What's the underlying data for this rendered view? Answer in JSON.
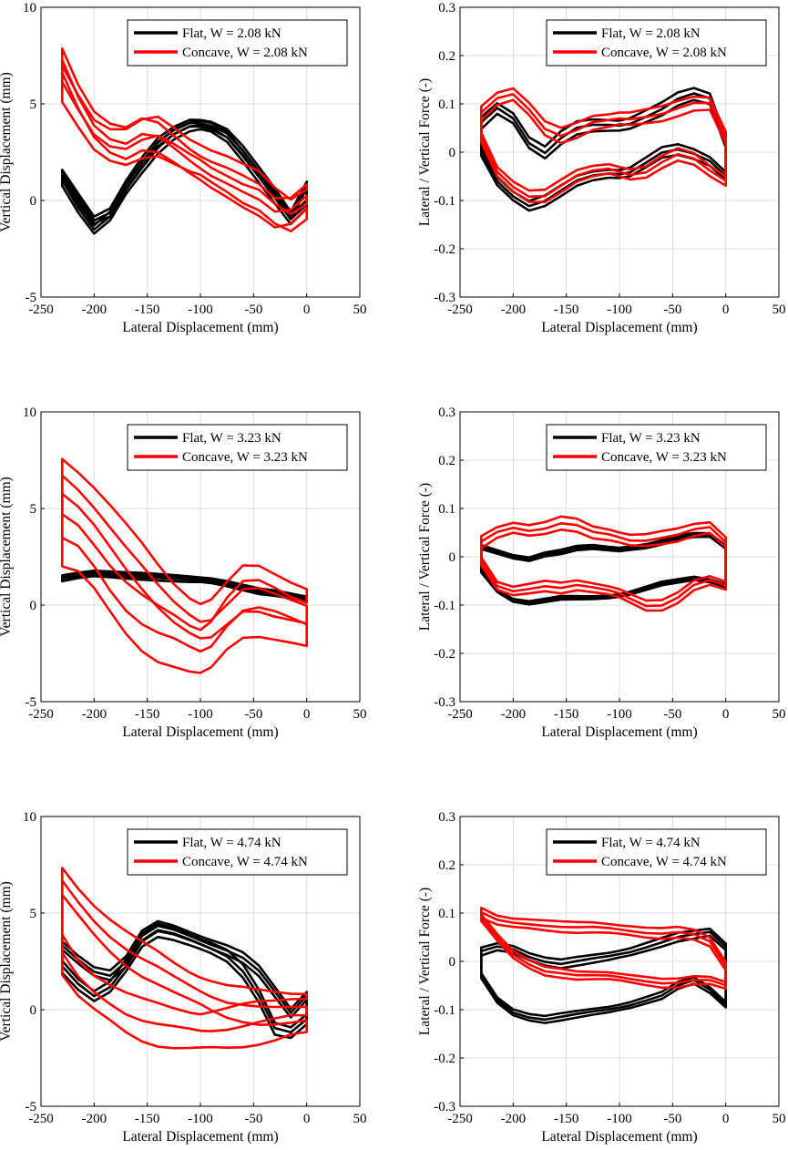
{
  "colors": {
    "flat": "#000000",
    "concave": "#ff0000",
    "grid": "#dcdcdc",
    "axis": "#000000"
  },
  "chart_data": [
    {
      "type": "line",
      "panel": "row1-left",
      "xlabel": "Lateral Displacement (mm)",
      "ylabel": "Vertical Displacement (mm)",
      "xlim": [
        -250,
        50
      ],
      "ylim": [
        -5,
        10
      ],
      "xticks": [
        -250,
        -200,
        -150,
        -100,
        -50,
        0,
        50
      ],
      "yticks": [
        -5,
        0,
        5,
        10
      ],
      "xtick_labels": [
        "-250",
        "-200",
        "-150",
        "-100",
        "-50",
        "0",
        "50"
      ],
      "ytick_labels": [
        "-5",
        "0",
        "5",
        "10"
      ],
      "grid": true,
      "legend_position": "top-right",
      "series": [
        {
          "name": "Flat, W = 2.08 kN",
          "color": "#000000",
          "loops": 3,
          "spread": 0.25,
          "x": [
            -230,
            -215,
            -200,
            -185,
            -170,
            -155,
            -140,
            -125,
            -110,
            -100,
            -90,
            -75,
            -60,
            -45,
            -30,
            -15,
            0
          ],
          "y_fwd": [
            1.0,
            -0.4,
            -1.5,
            -0.8,
            0.6,
            1.7,
            2.7,
            3.4,
            3.8,
            3.9,
            3.8,
            3.3,
            2.3,
            1.2,
            0.1,
            -1.0,
            -0.2
          ],
          "y_ret": [
            1.4,
            0.2,
            -1.0,
            -0.6,
            0.8,
            2.0,
            3.0,
            3.6,
            4.0,
            4.0,
            3.9,
            3.5,
            2.6,
            1.5,
            0.4,
            -0.8,
            0.8
          ]
        },
        {
          "name": "Concave, W = 2.08 kN",
          "color": "#ff0000",
          "loops": 3,
          "spread": 0.9,
          "x": [
            -230,
            -215,
            -200,
            -185,
            -170,
            -155,
            -140,
            -125,
            -110,
            -100,
            -90,
            -75,
            -60,
            -45,
            -30,
            -15,
            0
          ],
          "y_fwd": [
            6.0,
            4.6,
            3.4,
            2.9,
            2.8,
            3.2,
            3.3,
            2.8,
            2.3,
            2.1,
            1.8,
            1.4,
            0.9,
            0.5,
            -0.3,
            -0.8,
            -0.2
          ],
          "y_ret": [
            7.2,
            5.4,
            4.0,
            3.3,
            3.0,
            3.4,
            3.2,
            2.6,
            2.0,
            1.7,
            1.4,
            1.0,
            0.5,
            0.0,
            -0.7,
            -0.6,
            0.2
          ]
        }
      ]
    },
    {
      "type": "line",
      "panel": "row1-right",
      "xlabel": "Lateral Displacement (mm)",
      "ylabel": "Lateral / Vertical Force (-)",
      "xlim": [
        -250,
        50
      ],
      "ylim": [
        -0.3,
        0.3
      ],
      "xticks": [
        -250,
        -200,
        -150,
        -100,
        -50,
        0,
        50
      ],
      "yticks": [
        -0.3,
        -0.2,
        -0.1,
        0,
        0.1,
        0.2,
        0.3
      ],
      "xtick_labels": [
        "-250",
        "-200",
        "-150",
        "-100",
        "-50",
        "0",
        "50"
      ],
      "ytick_labels": [
        "-0.3",
        "-0.2",
        "-0.1",
        "0",
        "0.1",
        "0.2",
        "0.3"
      ],
      "grid": true,
      "legend_position": "top-right",
      "series": [
        {
          "name": "Flat, W = 2.08 kN",
          "color": "#000000",
          "loops": 3,
          "spread": 0.012,
          "x": [
            -230,
            -215,
            -200,
            -185,
            -170,
            -155,
            -140,
            -125,
            -110,
            -100,
            -90,
            -75,
            -60,
            -45,
            -30,
            -15,
            0
          ],
          "y_top": [
            0.06,
            0.09,
            0.07,
            0.02,
            0.0,
            0.03,
            0.05,
            0.055,
            0.055,
            0.055,
            0.06,
            0.075,
            0.09,
            0.11,
            0.12,
            0.11,
            0.02
          ],
          "y_bot": [
            0.0,
            -0.06,
            -0.09,
            -0.11,
            -0.1,
            -0.08,
            -0.06,
            -0.05,
            -0.045,
            -0.045,
            -0.04,
            -0.02,
            0.0,
            0.005,
            -0.005,
            -0.02,
            -0.05
          ]
        },
        {
          "name": "Concave, W = 2.08 kN",
          "color": "#ff0000",
          "loops": 3,
          "spread": 0.014,
          "x": [
            -230,
            -215,
            -200,
            -185,
            -170,
            -155,
            -140,
            -125,
            -110,
            -100,
            -90,
            -75,
            -60,
            -45,
            -30,
            -15,
            0
          ],
          "y_top": [
            0.08,
            0.11,
            0.12,
            0.09,
            0.05,
            0.035,
            0.045,
            0.06,
            0.065,
            0.07,
            0.07,
            0.075,
            0.08,
            0.09,
            0.1,
            0.1,
            0.03
          ],
          "y_bot": [
            0.03,
            -0.04,
            -0.07,
            -0.09,
            -0.09,
            -0.07,
            -0.05,
            -0.04,
            -0.035,
            -0.04,
            -0.045,
            -0.04,
            -0.02,
            -0.005,
            -0.015,
            -0.04,
            -0.06
          ]
        }
      ]
    },
    {
      "type": "line",
      "panel": "row2-left",
      "xlabel": "Lateral Displacement (mm)",
      "ylabel": "Vertical Displacement (mm)",
      "xlim": [
        -250,
        50
      ],
      "ylim": [
        -5,
        10
      ],
      "xticks": [
        -250,
        -200,
        -150,
        -100,
        -50,
        0,
        50
      ],
      "yticks": [
        -5,
        0,
        5,
        10
      ],
      "xtick_labels": [
        "-250",
        "-200",
        "-150",
        "-100",
        "-50",
        "0",
        "50"
      ],
      "ytick_labels": [
        "-5",
        "0",
        "5",
        "10"
      ],
      "grid": true,
      "legend_position": "top-right",
      "series": [
        {
          "name": "Flat, W = 3.23 kN",
          "color": "#000000",
          "loops": 3,
          "spread": 0.12,
          "x": [
            -230,
            -215,
            -200,
            -185,
            -170,
            -155,
            -140,
            -125,
            -110,
            -100,
            -90,
            -75,
            -60,
            -45,
            -30,
            -15,
            0
          ],
          "y_fwd": [
            1.35,
            1.5,
            1.6,
            1.55,
            1.5,
            1.45,
            1.4,
            1.35,
            1.3,
            1.3,
            1.25,
            1.1,
            0.9,
            0.7,
            0.6,
            0.45,
            0.3
          ],
          "y_ret": [
            1.45,
            1.6,
            1.7,
            1.65,
            1.6,
            1.55,
            1.5,
            1.45,
            1.4,
            1.35,
            1.3,
            1.15,
            0.95,
            0.75,
            0.65,
            0.5,
            0.35
          ]
        },
        {
          "name": "Concave, W = 3.23 kN",
          "color": "#ff0000",
          "loops": 3,
          "spread": 1.3,
          "x": [
            -230,
            -215,
            -200,
            -185,
            -170,
            -155,
            -140,
            -125,
            -110,
            -100,
            -90,
            -75,
            -60,
            -45,
            -30,
            -15,
            0
          ],
          "y_fwd": [
            3.3,
            2.9,
            2.0,
            0.9,
            -0.1,
            -0.9,
            -1.5,
            -1.9,
            -2.3,
            -2.4,
            -2.0,
            -0.9,
            -0.2,
            -0.2,
            -0.5,
            -0.8,
            -1.0
          ],
          "y_ret": [
            6.6,
            6.0,
            5.2,
            4.2,
            3.1,
            2.0,
            0.9,
            0.0,
            -0.6,
            -0.8,
            -0.6,
            0.2,
            0.9,
            0.8,
            0.4,
            0.1,
            -0.1
          ]
        }
      ]
    },
    {
      "type": "line",
      "panel": "row2-right",
      "xlabel": "Lateral Displacement (mm)",
      "ylabel": "Lateral / Vertical Force (-)",
      "xlim": [
        -250,
        50
      ],
      "ylim": [
        -0.3,
        0.3
      ],
      "xticks": [
        -250,
        -200,
        -150,
        -100,
        -50,
        0,
        50
      ],
      "yticks": [
        -0.3,
        -0.2,
        -0.1,
        0,
        0.1,
        0.2,
        0.3
      ],
      "xtick_labels": [
        "-250",
        "-200",
        "-150",
        "-100",
        "-50",
        "0",
        "50"
      ],
      "ytick_labels": [
        "-0.3",
        "-0.2",
        "-0.1",
        "0",
        "0.1",
        "0.2",
        "0.3"
      ],
      "grid": true,
      "legend_position": "top-right",
      "series": [
        {
          "name": "Flat, W = 3.23 kN",
          "color": "#000000",
          "loops": 3,
          "spread": 0.004,
          "x": [
            -230,
            -215,
            -200,
            -185,
            -170,
            -155,
            -140,
            -125,
            -110,
            -100,
            -90,
            -75,
            -60,
            -45,
            -30,
            -15,
            0
          ],
          "y_top": [
            0.02,
            0.01,
            0.0,
            -0.005,
            0.005,
            0.01,
            0.018,
            0.02,
            0.017,
            0.015,
            0.018,
            0.022,
            0.03,
            0.04,
            0.045,
            0.045,
            0.02
          ],
          "y_bot": [
            -0.03,
            -0.07,
            -0.09,
            -0.095,
            -0.09,
            -0.085,
            -0.085,
            -0.085,
            -0.083,
            -0.08,
            -0.075,
            -0.065,
            -0.055,
            -0.05,
            -0.045,
            -0.05,
            -0.06
          ]
        },
        {
          "name": "Concave, W = 3.23 kN",
          "color": "#ff0000",
          "loops": 3,
          "spread": 0.012,
          "x": [
            -230,
            -215,
            -200,
            -185,
            -170,
            -155,
            -140,
            -125,
            -110,
            -100,
            -90,
            -75,
            -60,
            -45,
            -30,
            -15,
            0
          ],
          "y_top": [
            0.03,
            0.05,
            0.06,
            0.055,
            0.06,
            0.07,
            0.065,
            0.05,
            0.045,
            0.04,
            0.035,
            0.035,
            0.04,
            0.045,
            0.055,
            0.06,
            0.03
          ],
          "y_bot": [
            -0.01,
            -0.06,
            -0.07,
            -0.065,
            -0.06,
            -0.065,
            -0.06,
            -0.065,
            -0.07,
            -0.075,
            -0.085,
            -0.1,
            -0.1,
            -0.085,
            -0.06,
            -0.05,
            -0.06
          ]
        }
      ]
    },
    {
      "type": "line",
      "panel": "row3-left",
      "xlabel": "Lateral Displacement (mm)",
      "ylabel": "Vertical Displacement (mm)",
      "xlim": [
        -250,
        50
      ],
      "ylim": [
        -5,
        10
      ],
      "xticks": [
        -250,
        -200,
        -150,
        -100,
        -50,
        0,
        50
      ],
      "yticks": [
        -5,
        0,
        5,
        10
      ],
      "xtick_labels": [
        "-250",
        "-200",
        "-150",
        "-100",
        "-50",
        "0",
        "50"
      ],
      "ytick_labels": [
        "-5",
        "0",
        "5",
        "10"
      ],
      "grid": true,
      "legend_position": "top-right",
      "series": [
        {
          "name": "Flat, W = 4.74 kN",
          "color": "#000000",
          "loops": 3,
          "spread": 0.3,
          "x": [
            -230,
            -215,
            -200,
            -185,
            -170,
            -155,
            -140,
            -125,
            -110,
            -100,
            -90,
            -75,
            -60,
            -45,
            -30,
            -15,
            0
          ],
          "y_fwd": [
            2.2,
            1.3,
            0.7,
            1.2,
            2.3,
            3.6,
            4.1,
            3.9,
            3.6,
            3.4,
            3.2,
            2.8,
            2.0,
            0.7,
            -1.0,
            -1.2,
            -0.5
          ],
          "y_ret": [
            3.3,
            2.6,
            2.0,
            1.8,
            2.5,
            3.8,
            4.3,
            4.1,
            3.8,
            3.6,
            3.4,
            3.1,
            2.7,
            2.0,
            0.9,
            -0.2,
            0.7
          ]
        },
        {
          "name": "Concave, W = 4.74 kN",
          "color": "#ff0000",
          "loops": 3,
          "spread": 1.0,
          "x": [
            -230,
            -215,
            -200,
            -185,
            -170,
            -155,
            -140,
            -125,
            -110,
            -100,
            -90,
            -75,
            -60,
            -45,
            -30,
            -15,
            0
          ],
          "y_fwd": [
            2.8,
            1.6,
            0.9,
            0.4,
            -0.1,
            -0.5,
            -0.8,
            -1.0,
            -1.1,
            -1.1,
            -1.0,
            -0.9,
            -0.8,
            -0.7,
            -0.6,
            -0.4,
            -0.3
          ],
          "y_ret": [
            6.6,
            5.6,
            4.7,
            3.9,
            3.2,
            2.6,
            2.1,
            1.6,
            1.2,
            1.0,
            0.8,
            0.5,
            0.3,
            0.1,
            0.0,
            0.0,
            0.1
          ]
        }
      ]
    },
    {
      "type": "line",
      "panel": "row3-right",
      "xlabel": "Lateral Displacement (mm)",
      "ylabel": "Lateral / Vertical Force (-)",
      "xlim": [
        -250,
        50
      ],
      "ylim": [
        -0.3,
        0.3
      ],
      "xticks": [
        -250,
        -200,
        -150,
        -100,
        -50,
        0,
        50
      ],
      "yticks": [
        -0.3,
        -0.2,
        -0.1,
        0,
        0.1,
        0.2,
        0.3
      ],
      "xtick_labels": [
        "-250",
        "-200",
        "-150",
        "-100",
        "-50",
        "0",
        "50"
      ],
      "ytick_labels": [
        "-0.3",
        "-0.2",
        "-0.1",
        "0",
        "0.1",
        "0.2",
        "0.3"
      ],
      "grid": true,
      "legend_position": "top-right",
      "series": [
        {
          "name": "Flat, W = 4.74 kN",
          "color": "#000000",
          "loops": 3,
          "spread": 0.008,
          "x": [
            -230,
            -215,
            -200,
            -185,
            -170,
            -155,
            -140,
            -125,
            -110,
            -100,
            -90,
            -75,
            -60,
            -45,
            -30,
            -15,
            0
          ],
          "y_top": [
            0.02,
            0.03,
            0.025,
            0.01,
            0.0,
            -0.005,
            0.0,
            0.005,
            0.01,
            0.015,
            0.02,
            0.03,
            0.04,
            0.05,
            0.055,
            0.06,
            0.03
          ],
          "y_bot": [
            -0.03,
            -0.08,
            -0.105,
            -0.115,
            -0.12,
            -0.115,
            -0.11,
            -0.105,
            -0.1,
            -0.095,
            -0.09,
            -0.08,
            -0.07,
            -0.05,
            -0.04,
            -0.06,
            -0.09
          ]
        },
        {
          "name": "Concave, W = 4.74 kN",
          "color": "#ff0000",
          "loops": 3,
          "spread": 0.01,
          "x": [
            -230,
            -215,
            -200,
            -185,
            -170,
            -155,
            -140,
            -125,
            -110,
            -100,
            -90,
            -75,
            -60,
            -45,
            -30,
            -15,
            0
          ],
          "y_top": [
            0.1,
            0.085,
            0.08,
            0.078,
            0.075,
            0.072,
            0.07,
            0.07,
            0.068,
            0.066,
            0.064,
            0.06,
            0.058,
            0.06,
            0.055,
            0.04,
            -0.01
          ],
          "y_bot": [
            0.09,
            0.05,
            0.015,
            -0.005,
            -0.02,
            -0.025,
            -0.03,
            -0.03,
            -0.03,
            -0.032,
            -0.035,
            -0.04,
            -0.045,
            -0.045,
            -0.04,
            -0.04,
            -0.05
          ]
        }
      ]
    }
  ]
}
